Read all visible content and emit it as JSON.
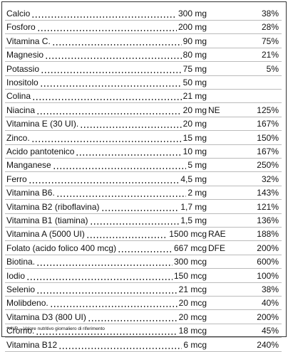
{
  "table": {
    "rows": [
      {
        "name": "Calcio",
        "amount": "300 mg",
        "dv": "38%"
      },
      {
        "name": "Fosforo",
        "amount": "200 mg",
        "dv": "28%"
      },
      {
        "name": "Vitamina C.",
        "amount": "90 mg",
        "dv": "75%"
      },
      {
        "name": "Magnesio",
        "amount": "80 mg",
        "dv": "21%"
      },
      {
        "name": "Potassio",
        "amount": "75 mg",
        "dv": "5%"
      },
      {
        "name": "Inositolo",
        "amount": "50 mg"
      },
      {
        "name": "Colina",
        "amount": "21 mg"
      },
      {
        "name": "Niacina",
        "amount": "20 mg",
        "suffix": "NE",
        "dv": "125%"
      },
      {
        "name": "Vitamina E (30 UI).",
        "amount": "20 mg",
        "dv": "167%"
      },
      {
        "name": "Zinco.",
        "amount": "15 mg",
        "dv": "150%"
      },
      {
        "name": "Acido pantotenico",
        "amount": "10 mg",
        "dv": "167%"
      },
      {
        "name": "Manganese",
        "amount": "5 mg",
        "dv": "250%"
      },
      {
        "name": "Ferro",
        "amount": "4,5 mg",
        "dv": "32%"
      },
      {
        "name": "Vitamina B6.",
        "amount": "2 mg",
        "dv": "143%"
      },
      {
        "name": "Vitamina B2 (riboflavina)",
        "amount": "1,7 mg",
        "dv": "121%"
      },
      {
        "name": "Vitamina B1 (tiamina)",
        "amount": "1,5 mg",
        "dv": "136%"
      },
      {
        "name": "Vitamina A (5000 UI)",
        "amount": "1500 mcg",
        "suffix": "RAE",
        "dv": "188%"
      },
      {
        "name": "Folato (acido folico 400 mcg)",
        "amount": "667 mcg",
        "suffix": "DFE",
        "dv": "200%"
      },
      {
        "name": "Biotina.",
        "amount": "300 mcg",
        "dv": "600%"
      },
      {
        "name": "Iodio",
        "amount": "150 mcg",
        "dv": "100%"
      },
      {
        "name": "Selenio",
        "amount": "21 mcg",
        "dv": "38%"
      },
      {
        "name": "Molibdeno.",
        "amount": "20 mcg",
        "dv": "40%"
      },
      {
        "name": "Vitamina D3 (800 UI)",
        "amount": "20 mcg",
        "dv": "200%"
      },
      {
        "name": "Cromo.",
        "amount": "18 mcg",
        "dv": "45%"
      },
      {
        "name": "Vitamina B12",
        "amount": "6 mcg",
        "dv": "240%"
      }
    ],
    "footnote": "*VNR – Valore nutritivo giornaliero di riferimento"
  }
}
